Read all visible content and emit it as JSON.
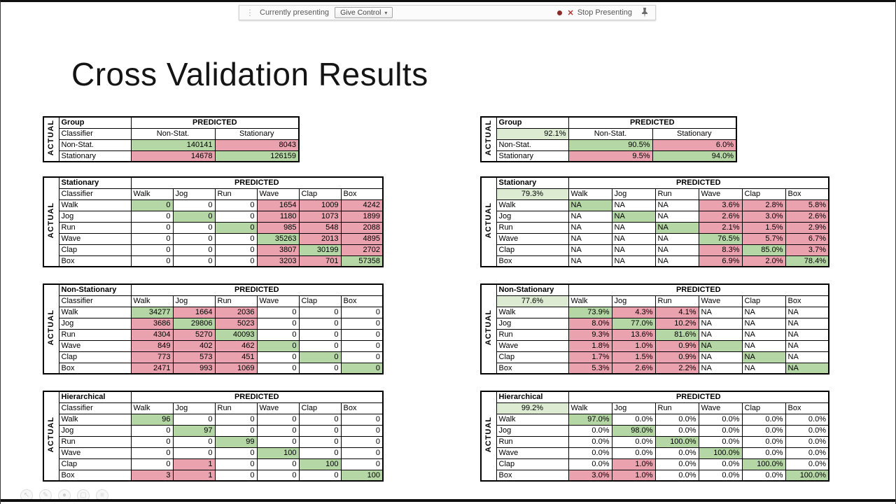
{
  "toolbar": {
    "currently_presenting": "Currently presenting",
    "give_control": "Give Control",
    "stop_presenting": "Stop Presenting"
  },
  "icons": {
    "drag_handle": "⋮",
    "chevron_down": "▾",
    "close": "✕",
    "ghost": [
      "↖",
      "✎",
      "●",
      "▢",
      "≡"
    ]
  },
  "slide": {
    "title": "Cross Validation Results"
  },
  "labels": {
    "predicted": "PREDICTED",
    "actual": "ACTUAL"
  },
  "colors": {
    "green": "#b5d6a5",
    "light_green": "#dcebd2",
    "pink": "#e9a2ae"
  },
  "tables": [
    {
      "id": "group-counts",
      "kind": "group",
      "name": "Group",
      "subheader": "Classifier",
      "sub_fill": "w",
      "sub_align": "left",
      "columns": [
        "Non-Stat.",
        "Stationary"
      ],
      "rows": [
        {
          "label": "Non-Stat.",
          "values": [
            "140141",
            "8043"
          ],
          "fills": [
            "g",
            "p"
          ]
        },
        {
          "label": "Stationary",
          "values": [
            "14678",
            "126159"
          ],
          "fills": [
            "p",
            "g"
          ]
        }
      ]
    },
    {
      "id": "stationary-counts",
      "kind": "activity",
      "name": "Stationary",
      "subheader": "Classifier",
      "sub_fill": "w",
      "sub_align": "left",
      "columns": [
        "Walk",
        "Jog",
        "Run",
        "Wave",
        "Clap",
        "Box"
      ],
      "rows": [
        {
          "label": "Walk",
          "values": [
            "0",
            "0",
            "0",
            "1654",
            "1009",
            "4242"
          ],
          "fills": [
            "g",
            "w",
            "w",
            "p",
            "p",
            "p"
          ]
        },
        {
          "label": "Jog",
          "values": [
            "0",
            "0",
            "0",
            "1180",
            "1073",
            "1899"
          ],
          "fills": [
            "w",
            "g",
            "w",
            "p",
            "p",
            "p"
          ]
        },
        {
          "label": "Run",
          "values": [
            "0",
            "0",
            "0",
            "985",
            "548",
            "2088"
          ],
          "fills": [
            "w",
            "w",
            "g",
            "p",
            "p",
            "p"
          ]
        },
        {
          "label": "Wave",
          "values": [
            "0",
            "0",
            "0",
            "35263",
            "2013",
            "4895"
          ],
          "fills": [
            "w",
            "w",
            "w",
            "g",
            "p",
            "p"
          ]
        },
        {
          "label": "Clap",
          "values": [
            "0",
            "0",
            "0",
            "3807",
            "30199",
            "2702"
          ],
          "fills": [
            "w",
            "w",
            "w",
            "p",
            "g",
            "p"
          ]
        },
        {
          "label": "Box",
          "values": [
            "0",
            "0",
            "0",
            "3203",
            "701",
            "57358"
          ],
          "fills": [
            "w",
            "w",
            "w",
            "p",
            "p",
            "g"
          ]
        }
      ]
    },
    {
      "id": "nonstationary-counts",
      "kind": "activity",
      "name": "Non-Stationary",
      "subheader": "Classifier",
      "sub_fill": "w",
      "sub_align": "left",
      "columns": [
        "Walk",
        "Jog",
        "Run",
        "Wave",
        "Clap",
        "Box"
      ],
      "rows": [
        {
          "label": "Walk",
          "values": [
            "34277",
            "1664",
            "2036",
            "0",
            "0",
            "0"
          ],
          "fills": [
            "g",
            "p",
            "p",
            "w",
            "w",
            "w"
          ]
        },
        {
          "label": "Jog",
          "values": [
            "3686",
            "29806",
            "5023",
            "0",
            "0",
            "0"
          ],
          "fills": [
            "p",
            "g",
            "p",
            "w",
            "w",
            "w"
          ]
        },
        {
          "label": "Run",
          "values": [
            "4304",
            "5270",
            "40093",
            "0",
            "0",
            "0"
          ],
          "fills": [
            "p",
            "p",
            "g",
            "w",
            "w",
            "w"
          ]
        },
        {
          "label": "Wave",
          "values": [
            "849",
            "402",
            "462",
            "0",
            "0",
            "0"
          ],
          "fills": [
            "p",
            "p",
            "p",
            "g",
            "w",
            "w"
          ]
        },
        {
          "label": "Clap",
          "values": [
            "773",
            "573",
            "451",
            "0",
            "0",
            "0"
          ],
          "fills": [
            "p",
            "p",
            "p",
            "w",
            "g",
            "w"
          ]
        },
        {
          "label": "Box",
          "values": [
            "2471",
            "993",
            "1069",
            "0",
            "0",
            "0"
          ],
          "fills": [
            "p",
            "p",
            "p",
            "w",
            "w",
            "g"
          ]
        }
      ]
    },
    {
      "id": "hierarchical-counts",
      "kind": "activity",
      "name": "Hierarchical",
      "subheader": "Classifier",
      "sub_fill": "w",
      "sub_align": "left",
      "columns": [
        "Walk",
        "Jog",
        "Run",
        "Wave",
        "Clap",
        "Box"
      ],
      "rows": [
        {
          "label": "Walk",
          "values": [
            "96",
            "0",
            "0",
            "0",
            "0",
            "0"
          ],
          "fills": [
            "g",
            "w",
            "w",
            "w",
            "w",
            "w"
          ]
        },
        {
          "label": "Jog",
          "values": [
            "0",
            "97",
            "0",
            "0",
            "0",
            "0"
          ],
          "fills": [
            "w",
            "g",
            "w",
            "w",
            "w",
            "w"
          ]
        },
        {
          "label": "Run",
          "values": [
            "0",
            "0",
            "99",
            "0",
            "0",
            "0"
          ],
          "fills": [
            "w",
            "w",
            "g",
            "w",
            "w",
            "w"
          ]
        },
        {
          "label": "Wave",
          "values": [
            "0",
            "0",
            "0",
            "100",
            "0",
            "0"
          ],
          "fills": [
            "w",
            "w",
            "w",
            "g",
            "w",
            "w"
          ]
        },
        {
          "label": "Clap",
          "values": [
            "0",
            "1",
            "0",
            "0",
            "100",
            "0"
          ],
          "fills": [
            "w",
            "p",
            "w",
            "w",
            "g",
            "w"
          ]
        },
        {
          "label": "Box",
          "values": [
            "3",
            "1",
            "0",
            "0",
            "0",
            "100"
          ],
          "fills": [
            "p",
            "p",
            "w",
            "w",
            "w",
            "g"
          ]
        }
      ]
    },
    {
      "id": "group-percent",
      "kind": "group",
      "name": "Group",
      "subheader": "92.1%",
      "sub_fill": "lg",
      "sub_align": "right",
      "columns": [
        "Non-Stat.",
        "Stationary"
      ],
      "rows": [
        {
          "label": "Non-Stat.",
          "values": [
            "90.5%",
            "6.0%"
          ],
          "fills": [
            "g",
            "p"
          ]
        },
        {
          "label": "Stationary",
          "values": [
            "9.5%",
            "94.0%"
          ],
          "fills": [
            "p",
            "g"
          ]
        }
      ]
    },
    {
      "id": "stationary-percent",
      "kind": "activity",
      "name": "Stationary",
      "subheader": "79.3%",
      "sub_fill": "lg",
      "sub_align": "center",
      "columns": [
        "Walk",
        "Jog",
        "Run",
        "Wave",
        "Clap",
        "Box"
      ],
      "rows": [
        {
          "label": "Walk",
          "values": [
            "NA",
            "NA",
            "NA",
            "3.6%",
            "2.8%",
            "5.8%"
          ],
          "fills": [
            "g",
            "w",
            "w",
            "p",
            "p",
            "p"
          ]
        },
        {
          "label": "Jog",
          "values": [
            "NA",
            "NA",
            "NA",
            "2.6%",
            "3.0%",
            "2.6%"
          ],
          "fills": [
            "w",
            "g",
            "w",
            "p",
            "p",
            "p"
          ]
        },
        {
          "label": "Run",
          "values": [
            "NA",
            "NA",
            "NA",
            "2.1%",
            "1.5%",
            "2.9%"
          ],
          "fills": [
            "w",
            "w",
            "g",
            "p",
            "p",
            "p"
          ]
        },
        {
          "label": "Wave",
          "values": [
            "NA",
            "NA",
            "NA",
            "76.5%",
            "5.7%",
            "6.7%"
          ],
          "fills": [
            "w",
            "w",
            "w",
            "g",
            "p",
            "p"
          ]
        },
        {
          "label": "Clap",
          "values": [
            "NA",
            "NA",
            "NA",
            "8.3%",
            "85.0%",
            "3.7%"
          ],
          "fills": [
            "w",
            "w",
            "w",
            "p",
            "g",
            "p"
          ]
        },
        {
          "label": "Box",
          "values": [
            "NA",
            "NA",
            "NA",
            "6.9%",
            "2.0%",
            "78.4%"
          ],
          "fills": [
            "w",
            "w",
            "w",
            "p",
            "p",
            "g"
          ]
        }
      ]
    },
    {
      "id": "nonstationary-percent",
      "kind": "activity",
      "name": "Non-Stationary",
      "subheader": "77.6%",
      "sub_fill": "lg",
      "sub_align": "center",
      "columns": [
        "Walk",
        "Jog",
        "Run",
        "Wave",
        "Clap",
        "Box"
      ],
      "rows": [
        {
          "label": "Walk",
          "values": [
            "73.9%",
            "4.3%",
            "4.1%",
            "NA",
            "NA",
            "NA"
          ],
          "fills": [
            "g",
            "p",
            "p",
            "w",
            "w",
            "w"
          ]
        },
        {
          "label": "Jog",
          "values": [
            "8.0%",
            "77.0%",
            "10.2%",
            "NA",
            "NA",
            "NA"
          ],
          "fills": [
            "p",
            "g",
            "p",
            "w",
            "w",
            "w"
          ]
        },
        {
          "label": "Run",
          "values": [
            "9.3%",
            "13.6%",
            "81.6%",
            "NA",
            "NA",
            "NA"
          ],
          "fills": [
            "p",
            "p",
            "g",
            "w",
            "w",
            "w"
          ]
        },
        {
          "label": "Wave",
          "values": [
            "1.8%",
            "1.0%",
            "0.9%",
            "NA",
            "NA",
            "NA"
          ],
          "fills": [
            "p",
            "p",
            "p",
            "g",
            "w",
            "w"
          ]
        },
        {
          "label": "Clap",
          "values": [
            "1.7%",
            "1.5%",
            "0.9%",
            "NA",
            "NA",
            "NA"
          ],
          "fills": [
            "p",
            "p",
            "p",
            "w",
            "g",
            "w"
          ]
        },
        {
          "label": "Box",
          "values": [
            "5.3%",
            "2.6%",
            "2.2%",
            "NA",
            "NA",
            "NA"
          ],
          "fills": [
            "p",
            "p",
            "p",
            "w",
            "w",
            "g"
          ]
        }
      ]
    },
    {
      "id": "hierarchical-percent",
      "kind": "activity",
      "name": "Hierarchical",
      "subheader": "99.2%",
      "sub_fill": "lg",
      "sub_align": "center",
      "columns": [
        "Walk",
        "Jog",
        "Run",
        "Wave",
        "Clap",
        "Box"
      ],
      "rows": [
        {
          "label": "Walk",
          "values": [
            "97.0%",
            "0.0%",
            "0.0%",
            "0.0%",
            "0.0%",
            "0.0%"
          ],
          "fills": [
            "g",
            "w",
            "w",
            "w",
            "w",
            "w"
          ]
        },
        {
          "label": "Jog",
          "values": [
            "0.0%",
            "98.0%",
            "0.0%",
            "0.0%",
            "0.0%",
            "0.0%"
          ],
          "fills": [
            "w",
            "g",
            "w",
            "w",
            "w",
            "w"
          ]
        },
        {
          "label": "Run",
          "values": [
            "0.0%",
            "0.0%",
            "100.0%",
            "0.0%",
            "0.0%",
            "0.0%"
          ],
          "fills": [
            "w",
            "w",
            "g",
            "w",
            "w",
            "w"
          ]
        },
        {
          "label": "Wave",
          "values": [
            "0.0%",
            "0.0%",
            "0.0%",
            "100.0%",
            "0.0%",
            "0.0%"
          ],
          "fills": [
            "w",
            "w",
            "w",
            "g",
            "w",
            "w"
          ]
        },
        {
          "label": "Clap",
          "values": [
            "0.0%",
            "1.0%",
            "0.0%",
            "0.0%",
            "100.0%",
            "0.0%"
          ],
          "fills": [
            "w",
            "p",
            "w",
            "w",
            "g",
            "w"
          ]
        },
        {
          "label": "Box",
          "values": [
            "3.0%",
            "1.0%",
            "0.0%",
            "0.0%",
            "0.0%",
            "100.0%"
          ],
          "fills": [
            "p",
            "p",
            "w",
            "w",
            "w",
            "g"
          ]
        }
      ]
    }
  ]
}
